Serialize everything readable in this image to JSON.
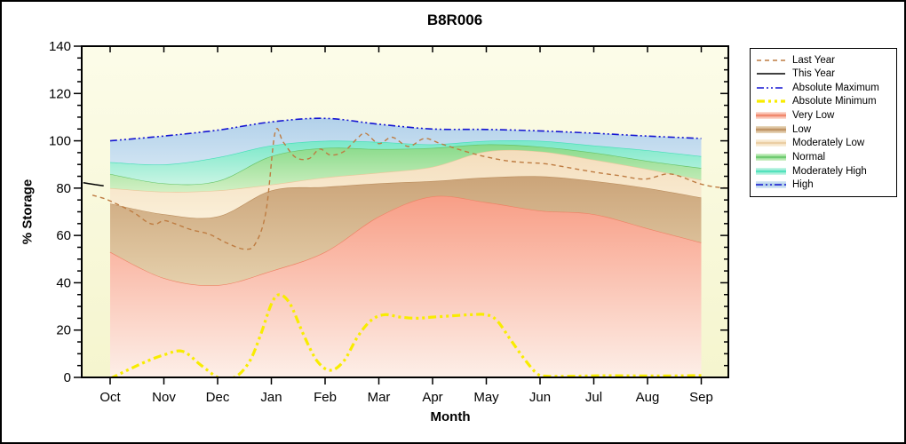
{
  "figure": {
    "title": "B8R006",
    "background": "#FFFFFF",
    "border_color": "#000000",
    "plot_bg_top": "#FCFCE9",
    "plot_bg_bottom": "#F5F5CE",
    "axis_color": "#000000"
  },
  "axes": {
    "x_label": "Month",
    "y_label": "% Storage",
    "y_tick_labels": [
      "0",
      "20",
      "40",
      "60",
      "80",
      "100",
      "120",
      "140"
    ],
    "x_tick_labels": [
      "Oct",
      "Nov",
      "Dec",
      "Jan",
      "Feb",
      "Mar",
      "Apr",
      "May",
      "Jun",
      "Jul",
      "Aug",
      "Sep"
    ]
  },
  "legend": {
    "items": [
      {
        "label": "Last Year",
        "type": "line",
        "color": "#BE7C42",
        "dash": "5 4",
        "width": 1.4
      },
      {
        "label": "This Year",
        "type": "line",
        "color": "#000000",
        "dash": "",
        "width": 1.5
      },
      {
        "label": "Absolute Maximum",
        "type": "line",
        "color": "#1414D2",
        "dash": "8 3 2 3 2 3",
        "width": 1.6
      },
      {
        "label": "Absolute Minimum",
        "type": "line",
        "color": "#F8EC00",
        "dash": "9 4 3 4 3 4",
        "width": 3.2
      },
      {
        "label": "Very Low",
        "type": "band",
        "color": "#F89E86",
        "edge": "#EE8265",
        "light": "#FCE3DA"
      },
      {
        "label": "Low",
        "type": "band",
        "color": "#CBA479",
        "edge": "#BC8F5F",
        "light": "#EBDDC2"
      },
      {
        "label": "Moderately Low",
        "type": "band",
        "color": "#F4DDBC",
        "edge": "#E8C89B",
        "light": "#FBF2DF"
      },
      {
        "label": "Normal",
        "type": "band",
        "color": "#87DA89",
        "edge": "#67C468",
        "light": "#D7F2CE"
      },
      {
        "label": "Moderately High",
        "type": "band",
        "color": "#7AE8C9",
        "edge": "#45DFB8",
        "light": "#D0F6E9"
      },
      {
        "label": "High",
        "type": "band-line",
        "color": "#AFCFE9",
        "edge": "#8FB8DC",
        "light": "#DCEAF6",
        "line_color": "#1414D2",
        "dash": "8 3 2 3 2 3"
      }
    ]
  },
  "chart_data": {
    "type": "area",
    "title": "B8R006",
    "xlabel": "Month",
    "ylabel": "% Storage",
    "categories": [
      "Oct",
      "Nov",
      "Dec",
      "Jan",
      "Feb",
      "Mar",
      "Apr",
      "May",
      "Jun",
      "Jul",
      "Aug",
      "Sep"
    ],
    "ylim": [
      0,
      140
    ],
    "y_major_step": 20,
    "y_minor_step": 5,
    "grid": false,
    "legend_position": "outside-right",
    "boundaries": {
      "zero": [
        0,
        0,
        0,
        0,
        0,
        0,
        0,
        0,
        0,
        0,
        0,
        0
      ],
      "very_low_top": [
        53,
        42,
        39,
        45,
        53,
        68,
        76.5,
        74,
        70.5,
        69,
        63,
        57
      ],
      "low_top": [
        73.5,
        69,
        68,
        79,
        80.5,
        82,
        83,
        84.5,
        85,
        83,
        80,
        76
      ],
      "mod_low_top": [
        80,
        78.5,
        79,
        81.5,
        84.5,
        86.5,
        89,
        95.5,
        95.5,
        92,
        88,
        83.5
      ],
      "normal_top": [
        86,
        82,
        83,
        93.5,
        97,
        96.5,
        97,
        98.5,
        97.5,
        95,
        91.5,
        88.5
      ],
      "mod_high_top": [
        91,
        90,
        93,
        98,
        100,
        99.5,
        98.5,
        100,
        100,
        98,
        96,
        93.5
      ],
      "abs_max": [
        100,
        102,
        104.5,
        108,
        109.5,
        107,
        105,
        104.8,
        104.2,
        103.2,
        102,
        101
      ]
    },
    "bands": [
      {
        "name": "Very Low",
        "upper_key": "very_low_top",
        "lower_key": "zero",
        "fill_top": "#F89E86",
        "fill_bottom": "#FDEFE8",
        "edge": "#EE8265"
      },
      {
        "name": "Low",
        "upper_key": "low_top",
        "lower_key": "very_low_top",
        "fill_top": "#CBA479",
        "fill_bottom": "#E5D0AC",
        "edge": "#BC8F5F"
      },
      {
        "name": "Moderately Low",
        "upper_key": "mod_low_top",
        "lower_key": "low_top",
        "fill_top": "#F4DDBC",
        "fill_bottom": "#FAEFD8",
        "edge": "#E9C99C"
      },
      {
        "name": "Normal",
        "upper_key": "normal_top",
        "lower_key": "mod_low_top",
        "fill_top": "#87DA89",
        "fill_bottom": "#D2F0C4",
        "edge": "#67C468"
      },
      {
        "name": "Moderately High",
        "upper_key": "mod_high_top",
        "lower_key": "normal_top",
        "fill_top": "#79E8C9",
        "fill_bottom": "#C8F4E3",
        "edge": "#45DFB8"
      },
      {
        "name": "High",
        "upper_key": "abs_max",
        "lower_key": "mod_high_top",
        "fill_top": "#B2D1EA",
        "fill_bottom": "#CFE3F2",
        "edge": "none"
      }
    ],
    "lines": [
      {
        "name": "Absolute Maximum",
        "color": "#1414D2",
        "width": 1.6,
        "dash": "8 3 2 3 2 3",
        "use_boundary": "abs_max"
      },
      {
        "name": "Absolute Minimum",
        "color": "#F8EC00",
        "width": 3.2,
        "dash": "9 4 3 4 3 4",
        "points": [
          [
            0,
            -0.5
          ],
          [
            0.6,
            6
          ],
          [
            1,
            9.5
          ],
          [
            1.35,
            11
          ],
          [
            1.7,
            5
          ],
          [
            2.05,
            -0.5
          ],
          [
            2.35,
            0.5
          ],
          [
            2.6,
            7
          ],
          [
            2.8,
            18
          ],
          [
            3,
            31
          ],
          [
            3.15,
            35
          ],
          [
            3.35,
            31
          ],
          [
            3.6,
            18
          ],
          [
            3.85,
            7
          ],
          [
            4.1,
            3
          ],
          [
            4.35,
            7
          ],
          [
            4.6,
            17
          ],
          [
            4.85,
            24
          ],
          [
            5.1,
            26.5
          ],
          [
            5.4,
            25.5
          ],
          [
            5.7,
            25
          ],
          [
            6,
            25.5
          ],
          [
            6.35,
            26
          ],
          [
            6.7,
            26.5
          ],
          [
            7,
            26.5
          ],
          [
            7.2,
            24
          ],
          [
            7.45,
            16
          ],
          [
            7.7,
            8
          ],
          [
            7.95,
            1.5
          ],
          [
            8.15,
            0.5
          ],
          [
            8.6,
            0.5
          ],
          [
            9.2,
            0.7
          ],
          [
            10.2,
            0.6
          ],
          [
            11,
            0.8
          ]
        ]
      },
      {
        "name": "Last Year",
        "color": "#BE7C42",
        "width": 1.4,
        "dash": "5 4",
        "points": [
          [
            -0.33,
            77
          ],
          [
            -0.1,
            75.5
          ],
          [
            0.15,
            73
          ],
          [
            0.45,
            69.5
          ],
          [
            0.7,
            65.5
          ],
          [
            0.85,
            64.8
          ],
          [
            1,
            66.3
          ],
          [
            1.2,
            65
          ],
          [
            1.5,
            62.5
          ],
          [
            1.85,
            60.5
          ],
          [
            2.15,
            57
          ],
          [
            2.5,
            54.2
          ],
          [
            2.7,
            56.5
          ],
          [
            2.9,
            70
          ],
          [
            3.07,
            103.5
          ],
          [
            3.22,
            99.5
          ],
          [
            3.45,
            93
          ],
          [
            3.7,
            92.5
          ],
          [
            3.9,
            96.5
          ],
          [
            4.1,
            94
          ],
          [
            4.35,
            95.5
          ],
          [
            4.6,
            101
          ],
          [
            4.75,
            103.2
          ],
          [
            5,
            98.8
          ],
          [
            5.25,
            101.5
          ],
          [
            5.55,
            97.6
          ],
          [
            5.85,
            101
          ],
          [
            6.15,
            98.8
          ],
          [
            6.6,
            95.6
          ],
          [
            7,
            93.2
          ],
          [
            7.4,
            91.5
          ],
          [
            7.75,
            90.8
          ],
          [
            8.1,
            90.3
          ],
          [
            8.5,
            88.8
          ],
          [
            9,
            86.8
          ],
          [
            9.5,
            85.2
          ],
          [
            9.95,
            83.8
          ],
          [
            10.35,
            86
          ],
          [
            10.6,
            85
          ],
          [
            10.95,
            82
          ],
          [
            11.25,
            80.5
          ],
          [
            11.5,
            80
          ]
        ]
      },
      {
        "name": "This Year",
        "color": "#000000",
        "width": 1.5,
        "dash": "",
        "points": [
          [
            -0.5,
            82.3
          ],
          [
            -0.28,
            81.5
          ],
          [
            -0.12,
            81
          ]
        ]
      }
    ]
  }
}
